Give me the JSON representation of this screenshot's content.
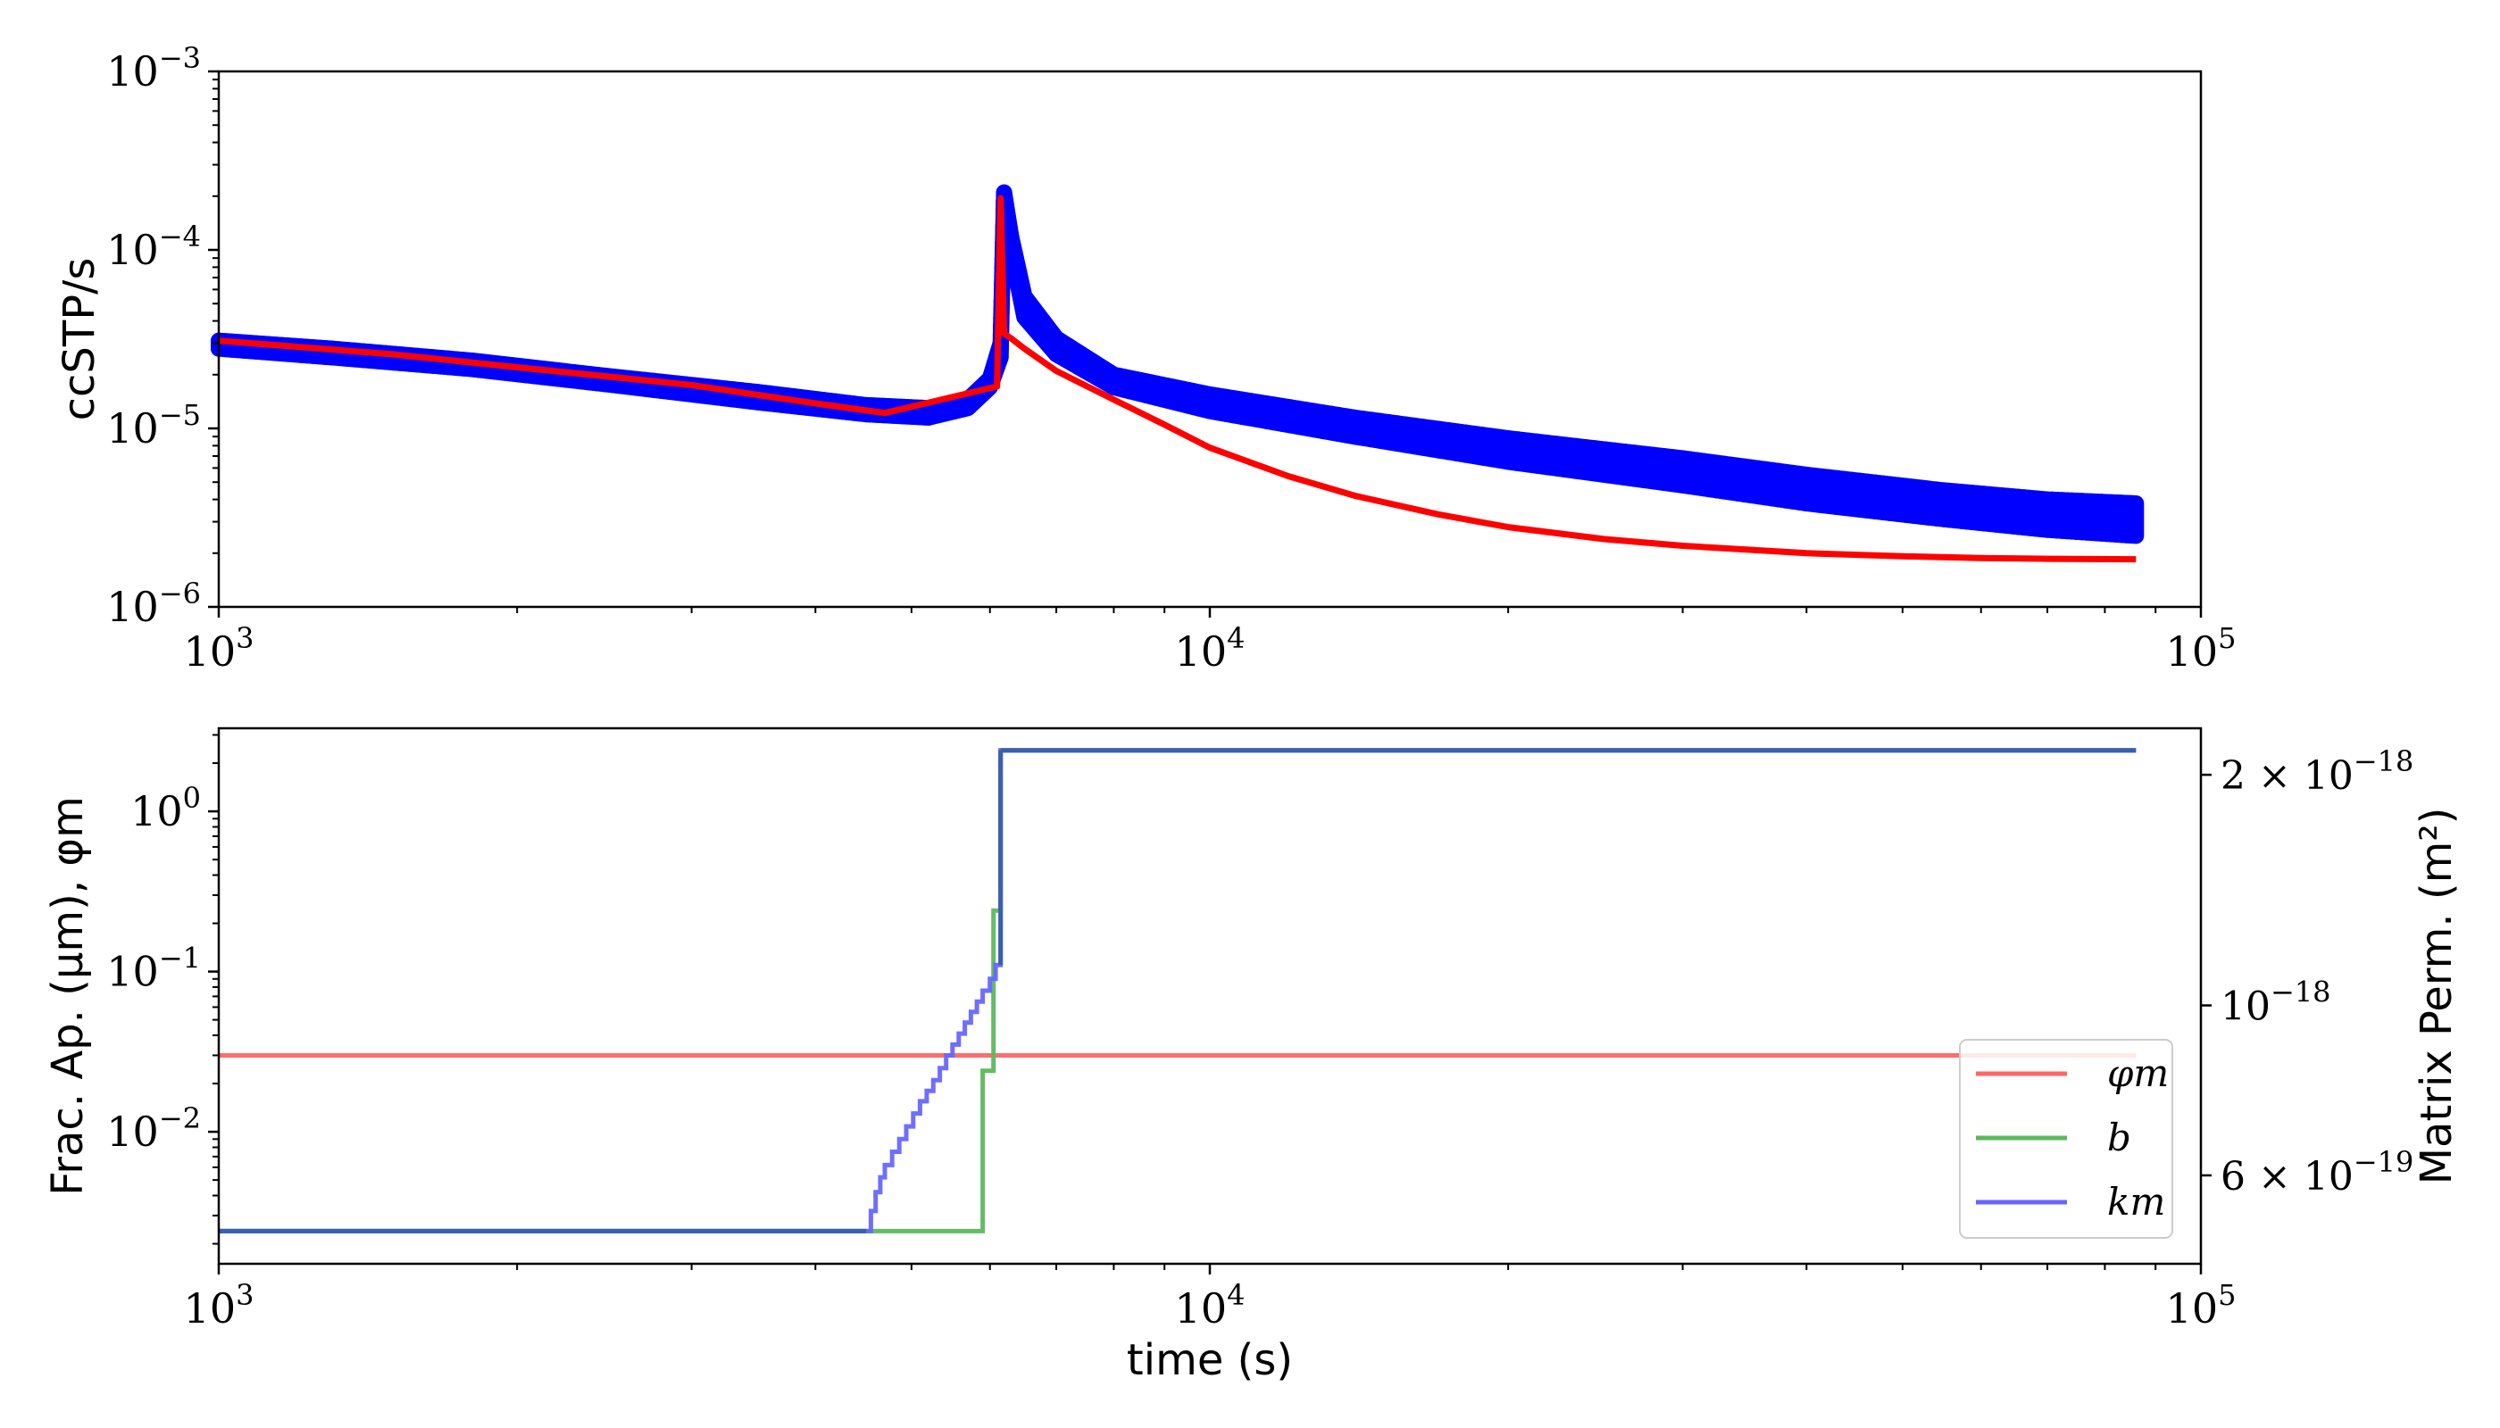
{
  "chart_data": [
    {
      "type": "scatter",
      "xscale": "log",
      "yscale": "log",
      "xlim": [
        1000,
        100000
      ],
      "ylim": [
        1e-06,
        0.001
      ],
      "xticks": [
        {
          "value": 1000,
          "base": "10",
          "exp": "3"
        },
        {
          "value": 10000,
          "base": "10",
          "exp": "4"
        },
        {
          "value": 100000,
          "base": "10",
          "exp": "5"
        }
      ],
      "yticks": [
        {
          "value": 1e-06,
          "base": "10",
          "exp": "−6"
        },
        {
          "value": 1e-05,
          "base": "10",
          "exp": "−5"
        },
        {
          "value": 0.0001,
          "base": "10",
          "exp": "−4"
        },
        {
          "value": 0.001,
          "base": "10",
          "exp": "−3"
        }
      ],
      "xlabel": "",
      "ylabel": "ccSTP/s",
      "series": [
        {
          "kind": "scatter-band",
          "color": "#0000ff",
          "x": [
            1000,
            1300,
            1800,
            2500,
            3500,
            4500,
            5200,
            5700,
            6000,
            6150,
            6200,
            6300,
            6500,
            7000,
            8000,
            10000,
            14000,
            20000,
            30000,
            40000,
            55000,
            70000,
            86000
          ],
          "low": [
            2.8e-05,
            2.5e-05,
            2.15e-05,
            1.75e-05,
            1.4e-05,
            1.2e-05,
            1.15e-05,
            1.3e-05,
            1.7e-05,
            2.5e-05,
            0.0002,
            0.0001,
            4.2e-05,
            2.6e-05,
            1.7e-05,
            1.25e-05,
            9e-06,
            6.5e-06,
            4.8e-06,
            3.8e-06,
            3.1e-06,
            2.7e-06,
            2.5e-06
          ],
          "high": [
            3.1e-05,
            2.8e-05,
            2.4e-05,
            1.95e-05,
            1.6e-05,
            1.35e-05,
            1.3e-05,
            1.45e-05,
            1.9e-05,
            3e-05,
            0.00021,
            0.00012,
            5.5e-05,
            3.2e-05,
            2e-05,
            1.55e-05,
            1.15e-05,
            8.8e-06,
            6.8e-06,
            5.5e-06,
            4.5e-06,
            4e-06,
            3.8e-06
          ]
        },
        {
          "kind": "line",
          "color": "#ff0000",
          "x": [
            1000,
            1500,
            2000,
            3000,
            4000,
            4700,
            5500,
            6100,
            6150,
            6200,
            6300,
            6500,
            7000,
            8000,
            9000,
            10000,
            12000,
            14000,
            17000,
            20000,
            25000,
            30000,
            40000,
            50000,
            60000,
            70000,
            86000
          ],
          "y": [
            3.1e-05,
            2.6e-05,
            2.2e-05,
            1.75e-05,
            1.38e-05,
            1.22e-05,
            1.5e-05,
            1.72e-05,
            0.000195,
            3.4e-05,
            3.2e-05,
            2.8e-05,
            2.1e-05,
            1.45e-05,
            1.05e-05,
            7.8e-06,
            5.4e-06,
            4.2e-06,
            3.3e-06,
            2.8e-06,
            2.4e-06,
            2.2e-06,
            2e-06,
            1.92e-06,
            1.88e-06,
            1.86e-06,
            1.85e-06
          ]
        }
      ]
    },
    {
      "type": "line",
      "xscale": "log",
      "yscale": "log",
      "xlim": [
        1000,
        100000
      ],
      "ylim": [
        0.0015,
        3.3
      ],
      "y2lim": [
        4.6e-19,
        2.3e-18
      ],
      "xlabel": "time (s)",
      "ylabel": "Frac. Ap. (μm), φm",
      "ylabel_right": "Matrix Perm. (m²)",
      "xticks": [
        {
          "value": 1000,
          "base": "10",
          "exp": "3"
        },
        {
          "value": 10000,
          "base": "10",
          "exp": "4"
        },
        {
          "value": 100000,
          "base": "10",
          "exp": "5"
        }
      ],
      "yticks": [
        {
          "value": 0.01,
          "base": "10",
          "exp": "−2"
        },
        {
          "value": 0.1,
          "base": "10",
          "exp": "−1"
        },
        {
          "value": 1,
          "base": "10",
          "exp": "0"
        }
      ],
      "y2ticks": [
        {
          "value": 6e-19,
          "prefix": "6 × ",
          "base": "10",
          "exp": "−19"
        },
        {
          "value": 1e-18,
          "prefix": "",
          "base": "10",
          "exp": "−18"
        },
        {
          "value": 2e-18,
          "prefix": "2 × ",
          "base": "10",
          "exp": "−18"
        }
      ],
      "legend_position": "lower-right",
      "series": [
        {
          "name": "φm",
          "color": "#ff6666",
          "kind": "line",
          "x": [
            1000,
            86000
          ],
          "y": [
            0.03,
            0.03
          ]
        },
        {
          "name": "b",
          "color": "#5cb85c",
          "kind": "step",
          "x": [
            1000,
            5900,
            5900,
            6050,
            6050,
            6150,
            6150,
            86000
          ],
          "y": [
            0.0024,
            0.0024,
            0.024,
            0.024,
            0.24,
            0.24,
            2.4,
            2.4
          ]
        },
        {
          "name": "km",
          "color": "#6666ff",
          "kind": "step",
          "x": [
            1000,
            4500,
            4550,
            4600,
            4650,
            4700,
            4780,
            4860,
            4940,
            5020,
            5100,
            5180,
            5260,
            5340,
            5420,
            5500,
            5580,
            5660,
            5740,
            5820,
            5900,
            6000,
            6080,
            6150,
            86000
          ],
          "y": [
            0.0024,
            0.0024,
            0.0032,
            0.0042,
            0.0052,
            0.0062,
            0.0075,
            0.009,
            0.0108,
            0.013,
            0.0155,
            0.018,
            0.021,
            0.025,
            0.03,
            0.035,
            0.041,
            0.048,
            0.056,
            0.065,
            0.076,
            0.09,
            0.11,
            2.4,
            2.4
          ]
        },
        {
          "kind": "overlap",
          "color": "#3a5fb0",
          "x": [
            1000,
            4500,
            6150,
            86000
          ],
          "y": [
            0.0024,
            0.0024,
            2.4,
            2.4
          ]
        }
      ]
    }
  ]
}
